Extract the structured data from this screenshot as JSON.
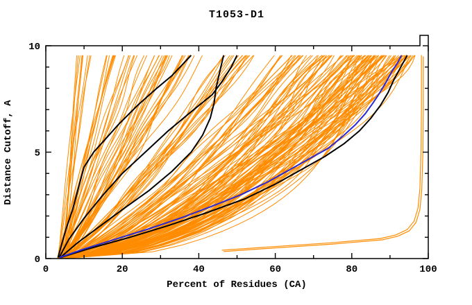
{
  "title": "T1053-D1",
  "axes": {
    "xlabel": "Percent of Residues (CA)",
    "ylabel": "Distance Cutoff, A",
    "xlim": [
      0,
      100
    ],
    "ylim": [
      0,
      10
    ],
    "x_major_ticks": [
      0,
      20,
      40,
      60,
      80,
      100
    ],
    "x_minor_step": 10,
    "y_major_ticks": [
      0,
      5,
      10
    ],
    "y_minor_step": 1
  },
  "colors": {
    "ensemble": "#FF8C00",
    "highlight": "#2A2AD4",
    "reference": "#000000",
    "frame": "#000000",
    "background": "#FFFFFF"
  },
  "chart_data": {
    "type": "line",
    "title": "T1053-D1",
    "xlabel": "Percent of Residues (CA)",
    "ylabel": "Distance Cutoff, A",
    "xlim": [
      0,
      100
    ],
    "ylim": [
      0,
      10
    ],
    "grid": false,
    "legend": "none",
    "y_top_end": 9.55,
    "series": [
      {
        "name": "highlight-model-blue",
        "color": "#2A2AD4",
        "width": 2,
        "points": [
          [
            3.6,
            0.05
          ],
          [
            10,
            0.45
          ],
          [
            18,
            0.9
          ],
          [
            27,
            1.4
          ],
          [
            36,
            1.95
          ],
          [
            44,
            2.5
          ],
          [
            51,
            3.0
          ],
          [
            58,
            3.6
          ],
          [
            64,
            4.2
          ],
          [
            70,
            4.8
          ],
          [
            74,
            5.2
          ],
          [
            78,
            5.8
          ],
          [
            81,
            6.3
          ],
          [
            83.5,
            6.8
          ],
          [
            85.5,
            7.3
          ],
          [
            87,
            7.7
          ],
          [
            89,
            8.3
          ],
          [
            90.5,
            8.8
          ],
          [
            92,
            9.2
          ],
          [
            93,
            9.55
          ]
        ]
      },
      {
        "name": "reference-black-1",
        "color": "#000000",
        "width": 2,
        "points": [
          [
            3.2,
            0.05
          ],
          [
            4.5,
            0.9
          ],
          [
            5.5,
            1.5
          ],
          [
            7,
            2.3
          ],
          [
            8.5,
            3.3
          ],
          [
            10,
            4.3
          ],
          [
            12.5,
            5.0
          ],
          [
            15,
            5.5
          ],
          [
            19,
            6.3
          ],
          [
            24,
            7.2
          ],
          [
            29,
            8.0
          ],
          [
            33,
            8.6
          ],
          [
            38,
            9.55
          ]
        ]
      },
      {
        "name": "reference-black-2",
        "color": "#000000",
        "width": 2,
        "points": [
          [
            3.5,
            0.05
          ],
          [
            6,
            0.9
          ],
          [
            10,
            1.9
          ],
          [
            15,
            3.0
          ],
          [
            20,
            4.0
          ],
          [
            26,
            5.0
          ],
          [
            32,
            6.0
          ],
          [
            38,
            6.9
          ],
          [
            43.5,
            7.7
          ],
          [
            46,
            8.3
          ],
          [
            48.5,
            9.0
          ],
          [
            50,
            9.55
          ]
        ]
      },
      {
        "name": "reference-black-3",
        "color": "#000000",
        "width": 2,
        "points": [
          [
            3.8,
            0.05
          ],
          [
            8,
            0.7
          ],
          [
            14,
            1.5
          ],
          [
            20,
            2.3
          ],
          [
            27,
            3.2
          ],
          [
            33,
            4.1
          ],
          [
            38,
            5.0
          ],
          [
            41,
            5.8
          ],
          [
            43,
            6.6
          ],
          [
            44,
            7.3
          ],
          [
            44.5,
            8.0
          ],
          [
            45.5,
            8.8
          ],
          [
            46.5,
            9.55
          ]
        ]
      },
      {
        "name": "reference-black-4",
        "color": "#000000",
        "width": 2,
        "points": [
          [
            3.8,
            0.05
          ],
          [
            12,
            0.5
          ],
          [
            22,
            1.0
          ],
          [
            32,
            1.55
          ],
          [
            42,
            2.15
          ],
          [
            52,
            2.8
          ],
          [
            60,
            3.5
          ],
          [
            67,
            4.2
          ],
          [
            73,
            4.8
          ],
          [
            78,
            5.4
          ],
          [
            82,
            6.0
          ],
          [
            85,
            6.6
          ],
          [
            87.5,
            7.2
          ],
          [
            89.5,
            7.8
          ],
          [
            91,
            8.4
          ],
          [
            92.5,
            8.9
          ],
          [
            94.5,
            9.55
          ]
        ]
      }
    ],
    "outlier": {
      "name": "outlier-model-orange",
      "color": "#FF8C00",
      "width": 1.2,
      "copies": 2,
      "copy_offset": [
        -0.5,
        0.06
      ],
      "points": [
        [
          46.5,
          0.33
        ],
        [
          60,
          0.5
        ],
        [
          75,
          0.68
        ],
        [
          88,
          0.88
        ],
        [
          92,
          1.05
        ],
        [
          95,
          1.3
        ],
        [
          96.8,
          1.7
        ],
        [
          97.8,
          2.3
        ],
        [
          98.3,
          3.2
        ],
        [
          98.6,
          5.0
        ],
        [
          98.7,
          7.0
        ],
        [
          98.7,
          9.5
        ]
      ]
    },
    "ensemble": {
      "name": "model-ensemble-orange",
      "color": "#FF8C00",
      "count": 175,
      "width": 1,
      "x_start_range": [
        3.0,
        5.5
      ],
      "x_top_range": [
        8,
        97
      ],
      "y_top": 9.55,
      "seed": 42
    }
  }
}
